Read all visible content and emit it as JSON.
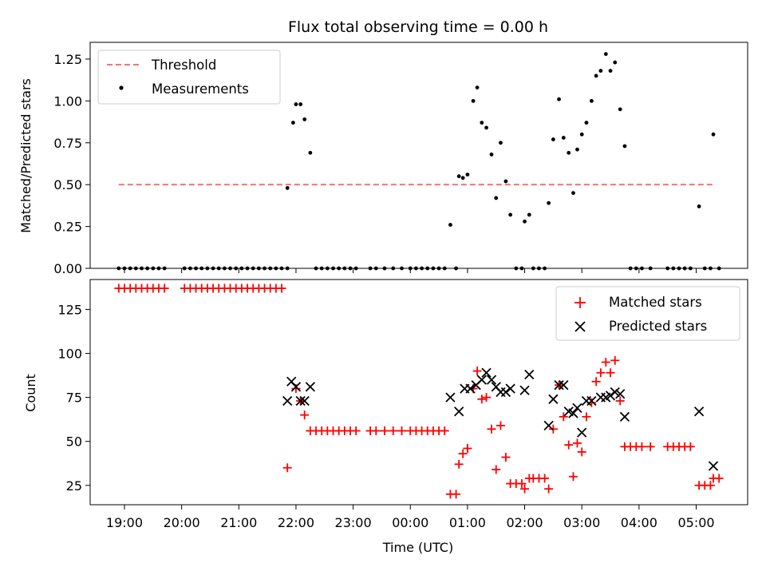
{
  "chart_data": [
    {
      "type": "scatter",
      "title": "Flux total observing time = 0.00 h",
      "xlabel": "",
      "ylabel": "Matched/Predicted stars",
      "ylim": [
        0,
        1.35
      ],
      "yticks": [
        "0.00",
        "0.25",
        "0.50",
        "0.75",
        "1.00",
        "1.25"
      ],
      "ytick_values": [
        0,
        0.25,
        0.5,
        0.75,
        1.0,
        1.25
      ],
      "legend": {
        "placement": "top-left",
        "entries": [
          "Threshold",
          "Measurements"
        ]
      },
      "threshold": {
        "name": "Threshold",
        "value": 0.5,
        "x_start": -0.1,
        "x_end": 10.3,
        "color": "#ff7070"
      },
      "series": [
        {
          "name": "Measurements",
          "color": "#000000",
          "points": [
            [
              -0.1,
              0
            ],
            [
              0.0,
              0
            ],
            [
              0.1,
              0
            ],
            [
              0.2,
              0
            ],
            [
              0.3,
              0
            ],
            [
              0.4,
              0
            ],
            [
              0.5,
              0
            ],
            [
              0.6,
              0
            ],
            [
              0.7,
              0
            ],
            [
              1.05,
              0
            ],
            [
              1.15,
              0
            ],
            [
              1.25,
              0
            ],
            [
              1.35,
              0
            ],
            [
              1.45,
              0
            ],
            [
              1.55,
              0
            ],
            [
              1.65,
              0
            ],
            [
              1.75,
              0
            ],
            [
              1.85,
              0
            ],
            [
              1.95,
              0
            ],
            [
              2.05,
              0
            ],
            [
              2.15,
              0
            ],
            [
              2.25,
              0
            ],
            [
              2.35,
              0
            ],
            [
              2.45,
              0
            ],
            [
              2.55,
              0
            ],
            [
              2.65,
              0
            ],
            [
              2.75,
              0
            ],
            [
              2.85,
              0
            ],
            [
              2.85,
              0.48
            ],
            [
              2.95,
              0.87
            ],
            [
              3.0,
              0.98
            ],
            [
              3.08,
              0.98
            ],
            [
              3.15,
              0.89
            ],
            [
              3.25,
              0.69
            ],
            [
              3.35,
              0
            ],
            [
              3.45,
              0
            ],
            [
              3.55,
              0
            ],
            [
              3.65,
              0
            ],
            [
              3.75,
              0
            ],
            [
              3.85,
              0
            ],
            [
              3.95,
              0
            ],
            [
              4.05,
              0
            ],
            [
              4.3,
              0
            ],
            [
              4.4,
              0
            ],
            [
              4.55,
              0
            ],
            [
              4.7,
              0
            ],
            [
              4.85,
              0
            ],
            [
              5.0,
              0
            ],
            [
              5.1,
              0
            ],
            [
              5.2,
              0
            ],
            [
              5.3,
              0
            ],
            [
              5.4,
              0
            ],
            [
              5.5,
              0
            ],
            [
              5.6,
              0
            ],
            [
              5.8,
              0
            ],
            [
              5.7,
              0.26
            ],
            [
              5.85,
              0.55
            ],
            [
              5.92,
              0.54
            ],
            [
              6.0,
              0.56
            ],
            [
              6.1,
              1.0
            ],
            [
              6.17,
              1.08
            ],
            [
              6.25,
              0.87
            ],
            [
              6.33,
              0.84
            ],
            [
              6.42,
              0.68
            ],
            [
              6.5,
              0.42
            ],
            [
              6.58,
              0.75
            ],
            [
              6.67,
              0.52
            ],
            [
              6.75,
              0.32
            ],
            [
              6.85,
              0
            ],
            [
              6.95,
              0
            ],
            [
              7.0,
              0.28
            ],
            [
              7.08,
              0.32
            ],
            [
              7.15,
              0
            ],
            [
              7.25,
              0
            ],
            [
              7.35,
              0
            ],
            [
              7.42,
              0.39
            ],
            [
              7.5,
              0.77
            ],
            [
              7.6,
              1.01
            ],
            [
              7.68,
              0.78
            ],
            [
              7.77,
              0.69
            ],
            [
              7.85,
              0.45
            ],
            [
              7.92,
              0.71
            ],
            [
              8.0,
              0.8
            ],
            [
              8.08,
              0.87
            ],
            [
              8.17,
              1.0
            ],
            [
              8.25,
              1.15
            ],
            [
              8.33,
              1.18
            ],
            [
              8.42,
              1.28
            ],
            [
              8.5,
              1.18
            ],
            [
              8.58,
              1.23
            ],
            [
              8.67,
              0.95
            ],
            [
              8.75,
              0.73
            ],
            [
              8.85,
              0
            ],
            [
              8.95,
              0
            ],
            [
              9.05,
              0
            ],
            [
              9.2,
              0
            ],
            [
              9.5,
              0
            ],
            [
              9.6,
              0
            ],
            [
              9.7,
              0
            ],
            [
              9.8,
              0
            ],
            [
              9.9,
              0
            ],
            [
              10.05,
              0.37
            ],
            [
              10.15,
              0
            ],
            [
              10.25,
              0
            ],
            [
              10.3,
              0.8
            ],
            [
              10.4,
              0
            ]
          ]
        }
      ]
    },
    {
      "type": "scatter",
      "title": "",
      "xlabel": "Time (UTC)",
      "ylabel": "Count",
      "ylim": [
        14,
        142
      ],
      "yticks": [
        "25",
        "50",
        "75",
        "100",
        "125"
      ],
      "ytick_values": [
        25,
        50,
        75,
        100,
        125
      ],
      "xlim": [
        -0.6,
        10.9
      ],
      "xticks": [
        "19:00",
        "20:00",
        "21:00",
        "22:00",
        "23:00",
        "00:00",
        "01:00",
        "02:00",
        "03:00",
        "04:00",
        "05:00"
      ],
      "xtick_values": [
        0,
        1,
        2,
        3,
        4,
        5,
        6,
        7,
        8,
        9,
        10
      ],
      "legend": {
        "placement": "top-right",
        "entries": [
          "Matched stars",
          "Predicted stars"
        ]
      },
      "series": [
        {
          "name": "Matched stars",
          "marker": "plus",
          "color": "#ff0000",
          "points": [
            [
              -0.1,
              137
            ],
            [
              0.0,
              137
            ],
            [
              0.1,
              137
            ],
            [
              0.2,
              137
            ],
            [
              0.3,
              137
            ],
            [
              0.4,
              137
            ],
            [
              0.5,
              137
            ],
            [
              0.6,
              137
            ],
            [
              0.7,
              137
            ],
            [
              1.05,
              137
            ],
            [
              1.15,
              137
            ],
            [
              1.25,
              137
            ],
            [
              1.35,
              137
            ],
            [
              1.45,
              137
            ],
            [
              1.55,
              137
            ],
            [
              1.65,
              137
            ],
            [
              1.75,
              137
            ],
            [
              1.85,
              137
            ],
            [
              1.95,
              137
            ],
            [
              2.05,
              137
            ],
            [
              2.15,
              137
            ],
            [
              2.25,
              137
            ],
            [
              2.35,
              137
            ],
            [
              2.45,
              137
            ],
            [
              2.55,
              137
            ],
            [
              2.65,
              137
            ],
            [
              2.75,
              137
            ],
            [
              2.85,
              35
            ],
            [
              3.0,
              80
            ],
            [
              3.08,
              73
            ],
            [
              3.15,
              65
            ],
            [
              3.25,
              56
            ],
            [
              3.35,
              56
            ],
            [
              3.45,
              56
            ],
            [
              3.55,
              56
            ],
            [
              3.65,
              56
            ],
            [
              3.75,
              56
            ],
            [
              3.85,
              56
            ],
            [
              3.95,
              56
            ],
            [
              4.05,
              56
            ],
            [
              4.3,
              56
            ],
            [
              4.4,
              56
            ],
            [
              4.55,
              56
            ],
            [
              4.7,
              56
            ],
            [
              4.85,
              56
            ],
            [
              5.0,
              56
            ],
            [
              5.1,
              56
            ],
            [
              5.2,
              56
            ],
            [
              5.3,
              56
            ],
            [
              5.4,
              56
            ],
            [
              5.5,
              56
            ],
            [
              5.6,
              56
            ],
            [
              5.7,
              20
            ],
            [
              5.8,
              20
            ],
            [
              5.85,
              37
            ],
            [
              5.92,
              43
            ],
            [
              6.0,
              46
            ],
            [
              6.1,
              80
            ],
            [
              6.17,
              90
            ],
            [
              6.25,
              74
            ],
            [
              6.33,
              75
            ],
            [
              6.42,
              57
            ],
            [
              6.5,
              34
            ],
            [
              6.58,
              59
            ],
            [
              6.67,
              41
            ],
            [
              6.75,
              26
            ],
            [
              6.85,
              26
            ],
            [
              6.95,
              26
            ],
            [
              7.0,
              23
            ],
            [
              7.08,
              29
            ],
            [
              7.15,
              29
            ],
            [
              7.25,
              29
            ],
            [
              7.35,
              29
            ],
            [
              7.42,
              23
            ],
            [
              7.5,
              57
            ],
            [
              7.6,
              82
            ],
            [
              7.68,
              64
            ],
            [
              7.77,
              48
            ],
            [
              7.85,
              30
            ],
            [
              7.92,
              49
            ],
            [
              8.0,
              44
            ],
            [
              8.08,
              64
            ],
            [
              8.17,
              72
            ],
            [
              8.25,
              84
            ],
            [
              8.33,
              89
            ],
            [
              8.42,
              95
            ],
            [
              8.5,
              89
            ],
            [
              8.58,
              96
            ],
            [
              8.67,
              73
            ],
            [
              8.75,
              47
            ],
            [
              8.85,
              47
            ],
            [
              8.95,
              47
            ],
            [
              9.05,
              47
            ],
            [
              9.2,
              47
            ],
            [
              9.5,
              47
            ],
            [
              9.6,
              47
            ],
            [
              9.7,
              47
            ],
            [
              9.8,
              47
            ],
            [
              9.9,
              47
            ],
            [
              10.05,
              25
            ],
            [
              10.15,
              25
            ],
            [
              10.25,
              25
            ],
            [
              10.3,
              29
            ],
            [
              10.4,
              29
            ]
          ]
        },
        {
          "name": "Predicted stars",
          "marker": "x",
          "color": "#000000",
          "points": [
            [
              2.85,
              73
            ],
            [
              2.92,
              84
            ],
            [
              3.0,
              81
            ],
            [
              3.08,
              73
            ],
            [
              3.15,
              73
            ],
            [
              3.25,
              81
            ],
            [
              5.7,
              75
            ],
            [
              5.85,
              67
            ],
            [
              5.95,
              80
            ],
            [
              6.05,
              80
            ],
            [
              6.15,
              82
            ],
            [
              6.25,
              85
            ],
            [
              6.33,
              89
            ],
            [
              6.42,
              85
            ],
            [
              6.5,
              81
            ],
            [
              6.58,
              78
            ],
            [
              6.67,
              78
            ],
            [
              6.75,
              80
            ],
            [
              7.0,
              79
            ],
            [
              7.08,
              88
            ],
            [
              7.42,
              59
            ],
            [
              7.5,
              74
            ],
            [
              7.6,
              82
            ],
            [
              7.68,
              82
            ],
            [
              7.77,
              67
            ],
            [
              7.85,
              66
            ],
            [
              7.92,
              69
            ],
            [
              8.0,
              55
            ],
            [
              8.08,
              73
            ],
            [
              8.17,
              73
            ],
            [
              8.33,
              75
            ],
            [
              8.42,
              75
            ],
            [
              8.5,
              76
            ],
            [
              8.58,
              78
            ],
            [
              8.67,
              77
            ],
            [
              8.75,
              64
            ],
            [
              10.05,
              67
            ],
            [
              10.3,
              36
            ]
          ]
        }
      ]
    }
  ]
}
